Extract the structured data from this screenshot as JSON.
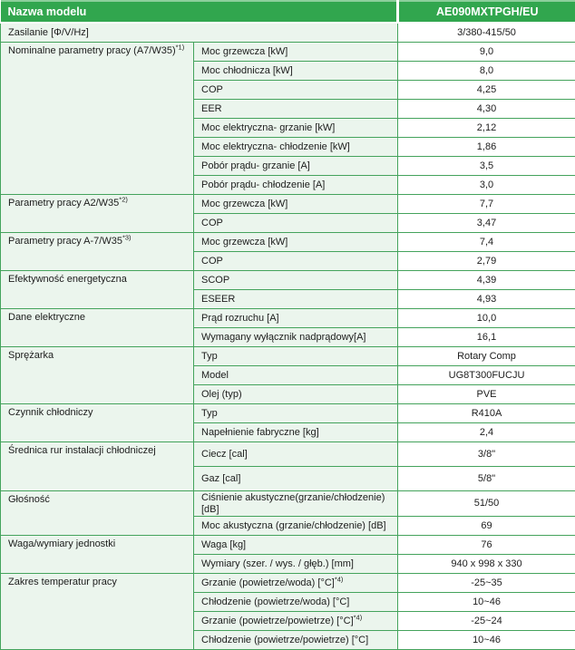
{
  "header": {
    "model_label": "Nazwa modelu",
    "model_value": "AE090MXTPGH/EU"
  },
  "power_row": {
    "label": "Zasilanie [Φ/V/Hz]",
    "value": "3/380-415/50"
  },
  "groups": [
    {
      "label": "Nominalne parametry pracy (A7/W35)",
      "sup": "*1)",
      "rows": [
        {
          "param": "Moc grzewcza [kW]",
          "value": "9,0"
        },
        {
          "param": "Moc chłodnicza [kW]",
          "value": "8,0"
        },
        {
          "param": "COP",
          "value": "4,25"
        },
        {
          "param": "EER",
          "value": "4,30"
        },
        {
          "param": "Moc elektryczna- grzanie [kW]",
          "value": "2,12"
        },
        {
          "param": "Moc elektryczna- chłodzenie [kW]",
          "value": "1,86"
        },
        {
          "param": "Pobór prądu- grzanie [A]",
          "value": "3,5"
        },
        {
          "param": "Pobór prądu- chłodzenie [A]",
          "value": "3,0"
        }
      ]
    },
    {
      "label": "Parametry pracy A2/W35",
      "sup": "*2)",
      "rows": [
        {
          "param": "Moc grzewcza [kW]",
          "value": "7,7"
        },
        {
          "param": "COP",
          "value": "3,47"
        }
      ]
    },
    {
      "label": "Parametry pracy A-7/W35",
      "sup": "*3)",
      "rows": [
        {
          "param": "Moc grzewcza [kW]",
          "value": "7,4"
        },
        {
          "param": "COP",
          "value": "2,79"
        }
      ]
    },
    {
      "label": "Efektywność energetyczna",
      "rows": [
        {
          "param": "SCOP",
          "value": "4,39"
        },
        {
          "param": "ESEER",
          "value": "4,93"
        }
      ]
    },
    {
      "label": "Dane elektryczne",
      "rows": [
        {
          "param": "Prąd rozruchu [A]",
          "value": "10,0"
        },
        {
          "param": "Wymagany wyłącznik nadprądowy[A]",
          "value": "16,1"
        }
      ]
    },
    {
      "label": "Sprężarka",
      "rows": [
        {
          "param": "Typ",
          "value": "Rotary Comp"
        },
        {
          "param": "Model",
          "value": "UG8T300FUCJU"
        },
        {
          "param": "Olej (typ)",
          "value": "PVE"
        }
      ]
    },
    {
      "label": "Czynnik chłodniczy",
      "rows": [
        {
          "param": "Typ",
          "value": "R410A"
        },
        {
          "param": "Napełnienie fabryczne [kg]",
          "value": "2,4"
        }
      ]
    },
    {
      "label": "Średnica rur instalacji chłodniczej",
      "tall": true,
      "rows": [
        {
          "param": "Ciecz [cal]",
          "value": "3/8\""
        },
        {
          "param": "Gaz [cal]",
          "value": "5/8\""
        }
      ]
    },
    {
      "label": "Głośność",
      "rows": [
        {
          "param": "Ciśnienie akustyczne(grzanie/chłodzenie) [dB]",
          "value": "51/50"
        },
        {
          "param": "Moc akustyczna (grzanie/chłodzenie) [dB]",
          "value": "69"
        }
      ]
    },
    {
      "label": "Waga/wymiary jednostki",
      "rows": [
        {
          "param": "Waga [kg]",
          "value": "76"
        },
        {
          "param": "Wymiary (szer. / wys. / głęb.) [mm]",
          "value": "940 x 998 x 330"
        }
      ]
    },
    {
      "label": "Zakres temperatur pracy",
      "rows": [
        {
          "param": "Grzanie (powietrze/woda) [°C]",
          "param_sup": "*4)",
          "value": "-25~35"
        },
        {
          "param": "Chłodzenie (powietrze/woda) [°C]",
          "value": "10~46"
        },
        {
          "param": "Grzanie (powietrze/powietrze) [°C]",
          "param_sup": "*4)",
          "value": "-25~24"
        },
        {
          "param": "Chłodzenie (powietrze/powietrze) [°C]",
          "value": "10~46"
        }
      ]
    }
  ],
  "colors": {
    "header_green": "#31a64e",
    "header_top_highlight": "#8ccf9b",
    "border_green": "#44a35c",
    "label_cell_tint": "#ebf5ed",
    "value_cell_bg": "#ffffff",
    "header_text": "#ffffff",
    "body_text": "#1c1c1c"
  }
}
